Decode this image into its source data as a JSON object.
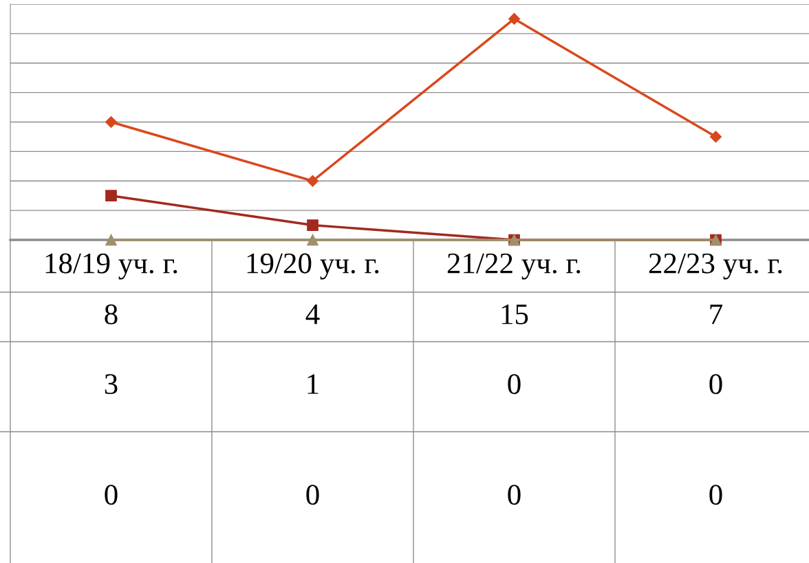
{
  "chart_data": {
    "type": "line",
    "categories": [
      "18/19 уч. г.",
      "19/20 уч. г.",
      "21/22 уч. г.",
      "22/23 уч. г."
    ],
    "series": [
      {
        "color": "#d9481c",
        "marker": "diamond",
        "values": [
          8,
          4,
          15,
          7
        ]
      },
      {
        "color": "#a3291e",
        "marker": "square",
        "values": [
          3,
          1,
          0,
          0
        ]
      },
      {
        "color": "#a08f6c",
        "marker": "triangle",
        "values": [
          0,
          0,
          0,
          0
        ]
      }
    ],
    "ylim": [
      0,
      16
    ],
    "yticks": [
      {
        "value": 0,
        "label": null
      },
      {
        "value": 2,
        "label": null
      },
      {
        "value": 4,
        "label": null
      },
      {
        "value": 6,
        "label": null
      },
      {
        "value": 8,
        "label": null
      },
      {
        "value": 10,
        "label": null
      },
      {
        "value": 12,
        "label": null
      },
      {
        "value": 14,
        "label": null
      },
      {
        "value": 16,
        "label": null
      }
    ],
    "grid": "y",
    "data_labels": true
  }
}
